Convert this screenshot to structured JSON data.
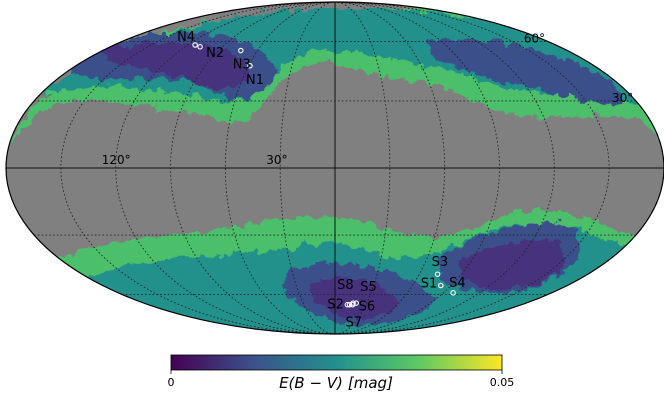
{
  "map": {
    "projection": "mollweide",
    "background_color": "#808080",
    "grid": true,
    "lon_grid_labels": [
      {
        "text": "120°",
        "lon": 120
      },
      {
        "text": "30°",
        "lon": 30
      }
    ],
    "lat_grid_labels": [
      {
        "text": "60°",
        "lat": 60
      },
      {
        "text": "30°",
        "lat": 30
      }
    ]
  },
  "fields": [
    {
      "name": "N1",
      "lon": 59,
      "lat": 47
    },
    {
      "name": "N2",
      "lon": 108,
      "lat": 57
    },
    {
      "name": "N3",
      "lon": 73,
      "lat": 55
    },
    {
      "name": "N4",
      "lon": 114,
      "lat": 58
    },
    {
      "name": "S1",
      "lon": -82,
      "lat": -55
    },
    {
      "name": "S2",
      "lon": -12,
      "lat": -66
    },
    {
      "name": "S3",
      "lon": -73,
      "lat": -49
    },
    {
      "name": "S4",
      "lon": -98,
      "lat": -59
    },
    {
      "name": "S5",
      "lon": -20,
      "lat": -65
    },
    {
      "name": "S6",
      "lon": -17,
      "lat": -66
    },
    {
      "name": "S7",
      "lon": -14,
      "lat": -66
    },
    {
      "name": "S8",
      "lon": -17,
      "lat": -65
    }
  ],
  "colorbar": {
    "label_prefix": "E(B − V)",
    "label_unit": "[mag]",
    "min_label": "0",
    "max_label": "0.05",
    "colormap": [
      "#440154",
      "#3b528b",
      "#21918c",
      "#5ec962",
      "#fde725"
    ]
  }
}
